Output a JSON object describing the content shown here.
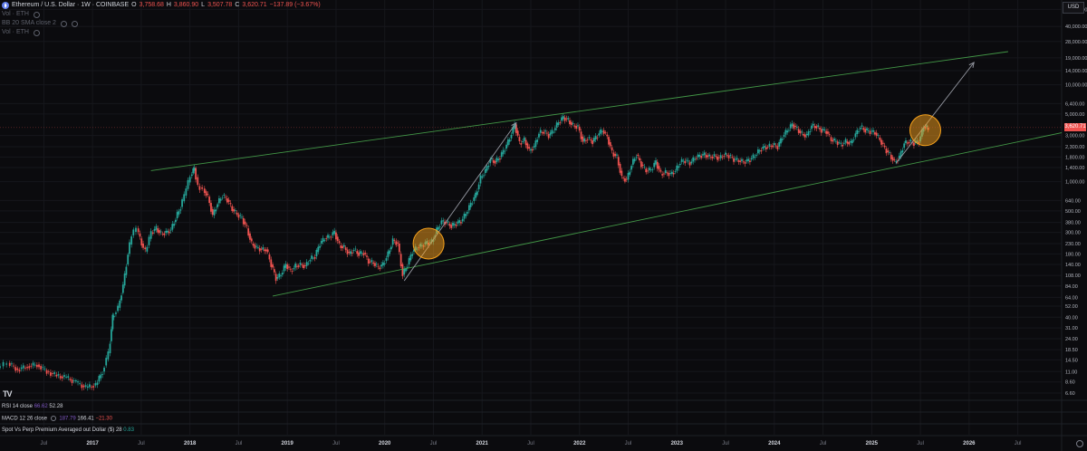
{
  "header": {
    "symbol": "Ethereum / U.S. Dollar · 1W · COINBASE",
    "open_key": "O",
    "open": "3,758.68",
    "high_key": "H",
    "high": "3,860.90",
    "low_key": "L",
    "low": "3,507.78",
    "close_key": "C",
    "close": "3,620.71",
    "change": "−137.89 (−3.67%)"
  },
  "overlays": [
    {
      "label": "Vol · ETH"
    },
    {
      "label": "BB 20 SMA close 2"
    },
    {
      "label": "Vol · ETH"
    }
  ],
  "price_axis": {
    "currency": "USD",
    "current_price": "3,620.71",
    "current_value": 3620.71,
    "ticks": [
      {
        "label": "60,000.00",
        "value": 60000
      },
      {
        "label": "40,000.00",
        "value": 40000
      },
      {
        "label": "28,000.00",
        "value": 28000
      },
      {
        "label": "19,000.00",
        "value": 19000
      },
      {
        "label": "14,000.00",
        "value": 14000
      },
      {
        "label": "10,000.00",
        "value": 10000
      },
      {
        "label": "6,400.00",
        "value": 6400
      },
      {
        "label": "5,000.00",
        "value": 5000
      },
      {
        "label": "3,000.00",
        "value": 3000
      },
      {
        "label": "2,300.00",
        "value": 2300
      },
      {
        "label": "1,800.00",
        "value": 1800
      },
      {
        "label": "1,400.00",
        "value": 1400
      },
      {
        "label": "1,000.00",
        "value": 1000
      },
      {
        "label": "640.00",
        "value": 640
      },
      {
        "label": "500.00",
        "value": 500
      },
      {
        "label": "380.00",
        "value": 380
      },
      {
        "label": "300.00",
        "value": 300
      },
      {
        "label": "230.00",
        "value": 230
      },
      {
        "label": "180.00",
        "value": 180
      },
      {
        "label": "140.00",
        "value": 140
      },
      {
        "label": "108.00",
        "value": 108
      },
      {
        "label": "84.00",
        "value": 84
      },
      {
        "label": "64.00",
        "value": 64
      },
      {
        "label": "52.00",
        "value": 52
      },
      {
        "label": "40.00",
        "value": 40
      },
      {
        "label": "31.00",
        "value": 31
      },
      {
        "label": "24.00",
        "value": 24
      },
      {
        "label": "18.50",
        "value": 18.5
      },
      {
        "label": "14.50",
        "value": 14.5
      },
      {
        "label": "11.00",
        "value": 11
      },
      {
        "label": "8.60",
        "value": 8.6
      },
      {
        "label": "6.60",
        "value": 6.6
      }
    ]
  },
  "time_axis": {
    "ticks": [
      {
        "label": "Jul",
        "t": 2016.5,
        "bold": false
      },
      {
        "label": "2017",
        "t": 2017.0,
        "bold": true
      },
      {
        "label": "Jul",
        "t": 2017.5,
        "bold": false
      },
      {
        "label": "2018",
        "t": 2018.0,
        "bold": true
      },
      {
        "label": "Jul",
        "t": 2018.5,
        "bold": false
      },
      {
        "label": "2019",
        "t": 2019.0,
        "bold": true
      },
      {
        "label": "Jul",
        "t": 2019.5,
        "bold": false
      },
      {
        "label": "2020",
        "t": 2020.0,
        "bold": true
      },
      {
        "label": "Jul",
        "t": 2020.5,
        "bold": false
      },
      {
        "label": "2021",
        "t": 2021.0,
        "bold": true
      },
      {
        "label": "Jul",
        "t": 2021.5,
        "bold": false
      },
      {
        "label": "2022",
        "t": 2022.0,
        "bold": true
      },
      {
        "label": "Jul",
        "t": 2022.5,
        "bold": false
      },
      {
        "label": "2023",
        "t": 2023.0,
        "bold": true
      },
      {
        "label": "Jul",
        "t": 2023.5,
        "bold": false
      },
      {
        "label": "2024",
        "t": 2024.0,
        "bold": true
      },
      {
        "label": "Jul",
        "t": 2024.5,
        "bold": false
      },
      {
        "label": "2025",
        "t": 2025.0,
        "bold": true
      },
      {
        "label": "Jul",
        "t": 2025.5,
        "bold": false
      },
      {
        "label": "2026",
        "t": 2026.0,
        "bold": true
      },
      {
        "label": "Jul",
        "t": 2026.5,
        "bold": false
      }
    ]
  },
  "panes": {
    "rsi": {
      "label": "RSI 14 close",
      "v1": "66.62",
      "v2": "52.28"
    },
    "macd": {
      "label": "MACD 12 26 close",
      "v1": "187.79",
      "v2": "166.41",
      "v3": "−21.30"
    },
    "spot": {
      "label": "Spot Vs Perp Premium Averaged out Dollar ($) 28",
      "v1": "0.83"
    }
  },
  "colors": {
    "background": "#0b0b0e",
    "up": "#26a69a",
    "down": "#ef5350",
    "channel": "#4caf50",
    "arrow": "#9598a1",
    "highlight_fill": "#f7a21b",
    "grid": "#16171c"
  },
  "chart_data": {
    "type": "candlestick",
    "title": "Ethereum / U.S. Dollar · 1W · COINBASE",
    "y_scale": "log",
    "ylim": [
      5.8,
      75000
    ],
    "xlim": [
      2016.05,
      2026.95
    ],
    "grid": true,
    "series": [
      {
        "t": 2016.05,
        "price": 12
      },
      {
        "t": 2016.15,
        "price": 13.5
      },
      {
        "t": 2016.25,
        "price": 11.5
      },
      {
        "t": 2016.35,
        "price": 12.5
      },
      {
        "t": 2016.45,
        "price": 13
      },
      {
        "t": 2016.55,
        "price": 11
      },
      {
        "t": 2016.65,
        "price": 10
      },
      {
        "t": 2016.75,
        "price": 9.5
      },
      {
        "t": 2016.85,
        "price": 8.5
      },
      {
        "t": 2016.95,
        "price": 7.5
      },
      {
        "t": 2017.05,
        "price": 8
      },
      {
        "t": 2017.12,
        "price": 11
      },
      {
        "t": 2017.18,
        "price": 17
      },
      {
        "t": 2017.22,
        "price": 40
      },
      {
        "t": 2017.28,
        "price": 50
      },
      {
        "t": 2017.33,
        "price": 85
      },
      {
        "t": 2017.38,
        "price": 180
      },
      {
        "t": 2017.42,
        "price": 280
      },
      {
        "t": 2017.47,
        "price": 330
      },
      {
        "t": 2017.52,
        "price": 230
      },
      {
        "t": 2017.56,
        "price": 190
      },
      {
        "t": 2017.62,
        "price": 300
      },
      {
        "t": 2017.67,
        "price": 330
      },
      {
        "t": 2017.72,
        "price": 290
      },
      {
        "t": 2017.77,
        "price": 300
      },
      {
        "t": 2017.82,
        "price": 320
      },
      {
        "t": 2017.87,
        "price": 420
      },
      {
        "t": 2017.92,
        "price": 550
      },
      {
        "t": 2017.96,
        "price": 720
      },
      {
        "t": 2018.02,
        "price": 1150
      },
      {
        "t": 2018.06,
        "price": 1380
      },
      {
        "t": 2018.1,
        "price": 900
      },
      {
        "t": 2018.15,
        "price": 850
      },
      {
        "t": 2018.2,
        "price": 700
      },
      {
        "t": 2018.25,
        "price": 450
      },
      {
        "t": 2018.3,
        "price": 600
      },
      {
        "t": 2018.35,
        "price": 720
      },
      {
        "t": 2018.4,
        "price": 650
      },
      {
        "t": 2018.45,
        "price": 520
      },
      {
        "t": 2018.5,
        "price": 460
      },
      {
        "t": 2018.55,
        "price": 420
      },
      {
        "t": 2018.6,
        "price": 330
      },
      {
        "t": 2018.65,
        "price": 230
      },
      {
        "t": 2018.7,
        "price": 210
      },
      {
        "t": 2018.75,
        "price": 200
      },
      {
        "t": 2018.8,
        "price": 200
      },
      {
        "t": 2018.85,
        "price": 140
      },
      {
        "t": 2018.9,
        "price": 100
      },
      {
        "t": 2018.95,
        "price": 110
      },
      {
        "t": 2019.0,
        "price": 140
      },
      {
        "t": 2019.05,
        "price": 120
      },
      {
        "t": 2019.1,
        "price": 135
      },
      {
        "t": 2019.15,
        "price": 140
      },
      {
        "t": 2019.2,
        "price": 135
      },
      {
        "t": 2019.25,
        "price": 160
      },
      {
        "t": 2019.3,
        "price": 170
      },
      {
        "t": 2019.35,
        "price": 230
      },
      {
        "t": 2019.4,
        "price": 260
      },
      {
        "t": 2019.45,
        "price": 270
      },
      {
        "t": 2019.5,
        "price": 300
      },
      {
        "t": 2019.55,
        "price": 220
      },
      {
        "t": 2019.6,
        "price": 210
      },
      {
        "t": 2019.65,
        "price": 180
      },
      {
        "t": 2019.7,
        "price": 200
      },
      {
        "t": 2019.75,
        "price": 180
      },
      {
        "t": 2019.8,
        "price": 185
      },
      {
        "t": 2019.85,
        "price": 150
      },
      {
        "t": 2019.9,
        "price": 145
      },
      {
        "t": 2019.95,
        "price": 130
      },
      {
        "t": 2020.0,
        "price": 140
      },
      {
        "t": 2020.05,
        "price": 180
      },
      {
        "t": 2020.1,
        "price": 250
      },
      {
        "t": 2020.15,
        "price": 230
      },
      {
        "t": 2020.2,
        "price": 110
      },
      {
        "t": 2020.25,
        "price": 140
      },
      {
        "t": 2020.3,
        "price": 190
      },
      {
        "t": 2020.35,
        "price": 210
      },
      {
        "t": 2020.4,
        "price": 220
      },
      {
        "t": 2020.45,
        "price": 235
      },
      {
        "t": 2020.5,
        "price": 240
      },
      {
        "t": 2020.55,
        "price": 320
      },
      {
        "t": 2020.6,
        "price": 390
      },
      {
        "t": 2020.65,
        "price": 380
      },
      {
        "t": 2020.7,
        "price": 350
      },
      {
        "t": 2020.75,
        "price": 370
      },
      {
        "t": 2020.8,
        "price": 390
      },
      {
        "t": 2020.85,
        "price": 470
      },
      {
        "t": 2020.9,
        "price": 590
      },
      {
        "t": 2020.95,
        "price": 730
      },
      {
        "t": 2021.0,
        "price": 1100
      },
      {
        "t": 2021.05,
        "price": 1300
      },
      {
        "t": 2021.1,
        "price": 1700
      },
      {
        "t": 2021.15,
        "price": 1600
      },
      {
        "t": 2021.2,
        "price": 1800
      },
      {
        "t": 2021.25,
        "price": 2200
      },
      {
        "t": 2021.3,
        "price": 2800
      },
      {
        "t": 2021.35,
        "price": 3900
      },
      {
        "t": 2021.4,
        "price": 2500
      },
      {
        "t": 2021.45,
        "price": 2700
      },
      {
        "t": 2021.5,
        "price": 2100
      },
      {
        "t": 2021.55,
        "price": 2300
      },
      {
        "t": 2021.6,
        "price": 3200
      },
      {
        "t": 2021.65,
        "price": 3300
      },
      {
        "t": 2021.7,
        "price": 3000
      },
      {
        "t": 2021.75,
        "price": 3400
      },
      {
        "t": 2021.8,
        "price": 4100
      },
      {
        "t": 2021.85,
        "price": 4600
      },
      {
        "t": 2021.9,
        "price": 4300
      },
      {
        "t": 2021.95,
        "price": 3800
      },
      {
        "t": 2022.0,
        "price": 3700
      },
      {
        "t": 2022.05,
        "price": 2600
      },
      {
        "t": 2022.1,
        "price": 2800
      },
      {
        "t": 2022.15,
        "price": 2600
      },
      {
        "t": 2022.2,
        "price": 3000
      },
      {
        "t": 2022.25,
        "price": 3400
      },
      {
        "t": 2022.3,
        "price": 2900
      },
      {
        "t": 2022.35,
        "price": 2000
      },
      {
        "t": 2022.4,
        "price": 1800
      },
      {
        "t": 2022.45,
        "price": 1100
      },
      {
        "t": 2022.5,
        "price": 1050
      },
      {
        "t": 2022.55,
        "price": 1500
      },
      {
        "t": 2022.6,
        "price": 1900
      },
      {
        "t": 2022.65,
        "price": 1500
      },
      {
        "t": 2022.7,
        "price": 1300
      },
      {
        "t": 2022.75,
        "price": 1330
      },
      {
        "t": 2022.8,
        "price": 1600
      },
      {
        "t": 2022.85,
        "price": 1200
      },
      {
        "t": 2022.9,
        "price": 1250
      },
      {
        "t": 2022.95,
        "price": 1200
      },
      {
        "t": 2023.0,
        "price": 1300
      },
      {
        "t": 2023.05,
        "price": 1600
      },
      {
        "t": 2023.1,
        "price": 1650
      },
      {
        "t": 2023.15,
        "price": 1550
      },
      {
        "t": 2023.2,
        "price": 1750
      },
      {
        "t": 2023.25,
        "price": 1850
      },
      {
        "t": 2023.3,
        "price": 1900
      },
      {
        "t": 2023.35,
        "price": 1800
      },
      {
        "t": 2023.4,
        "price": 1850
      },
      {
        "t": 2023.45,
        "price": 1750
      },
      {
        "t": 2023.5,
        "price": 1900
      },
      {
        "t": 2023.55,
        "price": 1850
      },
      {
        "t": 2023.6,
        "price": 1700
      },
      {
        "t": 2023.65,
        "price": 1650
      },
      {
        "t": 2023.7,
        "price": 1600
      },
      {
        "t": 2023.75,
        "price": 1650
      },
      {
        "t": 2023.8,
        "price": 1800
      },
      {
        "t": 2023.85,
        "price": 2050
      },
      {
        "t": 2023.9,
        "price": 2250
      },
      {
        "t": 2023.95,
        "price": 2300
      },
      {
        "t": 2024.0,
        "price": 2400
      },
      {
        "t": 2024.05,
        "price": 2300
      },
      {
        "t": 2024.1,
        "price": 2900
      },
      {
        "t": 2024.15,
        "price": 3400
      },
      {
        "t": 2024.2,
        "price": 3900
      },
      {
        "t": 2024.25,
        "price": 3500
      },
      {
        "t": 2024.3,
        "price": 3100
      },
      {
        "t": 2024.35,
        "price": 3000
      },
      {
        "t": 2024.4,
        "price": 3800
      },
      {
        "t": 2024.45,
        "price": 3700
      },
      {
        "t": 2024.5,
        "price": 3400
      },
      {
        "t": 2024.55,
        "price": 3300
      },
      {
        "t": 2024.6,
        "price": 2700
      },
      {
        "t": 2024.65,
        "price": 2600
      },
      {
        "t": 2024.7,
        "price": 2400
      },
      {
        "t": 2024.75,
        "price": 2600
      },
      {
        "t": 2024.8,
        "price": 2500
      },
      {
        "t": 2024.85,
        "price": 3100
      },
      {
        "t": 2024.9,
        "price": 3700
      },
      {
        "t": 2024.95,
        "price": 3400
      },
      {
        "t": 2025.0,
        "price": 3300
      },
      {
        "t": 2025.05,
        "price": 3200
      },
      {
        "t": 2025.1,
        "price": 2700
      },
      {
        "t": 2025.15,
        "price": 2200
      },
      {
        "t": 2025.2,
        "price": 1900
      },
      {
        "t": 2025.25,
        "price": 1600
      },
      {
        "t": 2025.3,
        "price": 1800
      },
      {
        "t": 2025.35,
        "price": 2500
      },
      {
        "t": 2025.4,
        "price": 2600
      },
      {
        "t": 2025.45,
        "price": 2500
      },
      {
        "t": 2025.5,
        "price": 2600
      },
      {
        "t": 2025.55,
        "price": 3700
      },
      {
        "t": 2025.58,
        "price": 3620
      }
    ],
    "channel": {
      "upper": [
        [
          2017.6,
          1300
        ],
        [
          2026.4,
          22000
        ]
      ],
      "lower": [
        [
          2018.85,
          66
        ],
        [
          2026.95,
          3200
        ]
      ]
    },
    "annotations": [
      {
        "type": "arrow",
        "from": [
          2020.2,
          95
        ],
        "to": [
          2021.35,
          4050
        ]
      },
      {
        "type": "arrow",
        "from": [
          2025.25,
          1550
        ],
        "to": [
          2026.05,
          17000
        ]
      },
      {
        "type": "circle",
        "center": [
          2020.45,
          230
        ]
      },
      {
        "type": "circle",
        "center": [
          2025.55,
          3400
        ]
      }
    ]
  }
}
